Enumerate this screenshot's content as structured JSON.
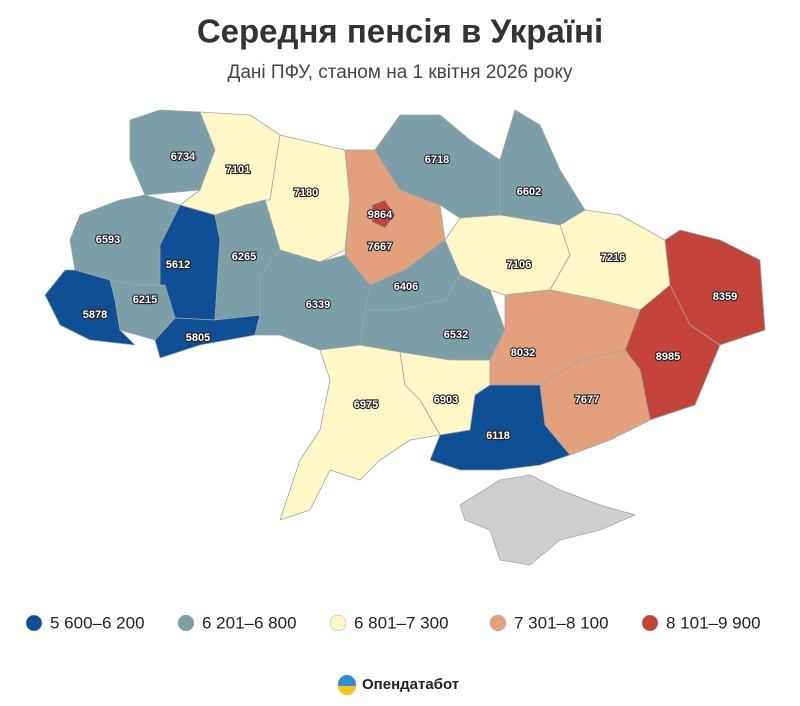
{
  "title": "Середня пенсія в Україні",
  "subtitle": "Дані ПФУ, станом на 1 квітня 2026 року",
  "map": {
    "no_data_color": "#cfcfd1",
    "regions": [
      {
        "value": 6734,
        "color": "#7c9ea6"
      },
      {
        "value": 7101,
        "color": "#fff8c6"
      },
      {
        "value": 7180,
        "color": "#fff8c6"
      },
      {
        "value": 7667,
        "color": "#e3a07a"
      },
      {
        "value": 6718,
        "color": "#7c9ea6"
      },
      {
        "value": 6602,
        "color": "#7c9ea6"
      },
      {
        "value": 6593,
        "color": "#7c9ea6"
      },
      {
        "value": 5612,
        "color": "#0e4f96"
      },
      {
        "value": 6265,
        "color": "#7c9ea6"
      },
      {
        "value": 6215,
        "color": "#7c9ea6"
      },
      {
        "value": 5878,
        "color": "#0e4f96"
      },
      {
        "value": 5805,
        "color": "#0e4f96"
      },
      {
        "value": 6339,
        "color": "#7c9ea6"
      },
      {
        "value": 6406,
        "color": "#7c9ea6"
      },
      {
        "value": 6532,
        "color": "#7c9ea6"
      },
      {
        "value": 7106,
        "color": "#fff8c6"
      },
      {
        "value": 7216,
        "color": "#fff8c6"
      },
      {
        "value": 8359,
        "color": "#c4443a"
      },
      {
        "value": 8985,
        "color": "#c4443a"
      },
      {
        "value": 8032,
        "color": "#e3a07a"
      },
      {
        "value": 7677,
        "color": "#e3a07a"
      },
      {
        "value": 6903,
        "color": "#fff8c6"
      },
      {
        "value": 6975,
        "color": "#fff8c6"
      },
      {
        "value": 6118,
        "color": "#0e4f96"
      },
      {
        "value": 9864,
        "color": "#c4443a"
      }
    ]
  },
  "legend": [
    {
      "label": "5 600–6 200",
      "color": "#0e4f96"
    },
    {
      "label": "6 201–6 800",
      "color": "#7c9ea6"
    },
    {
      "label": "6 801–7 300",
      "color": "#fff8c6"
    },
    {
      "label": "7 301–8 100",
      "color": "#e3a07a"
    },
    {
      "label": "8 101–9 900",
      "color": "#c4443a"
    }
  ],
  "logo": "Опендатабот"
}
